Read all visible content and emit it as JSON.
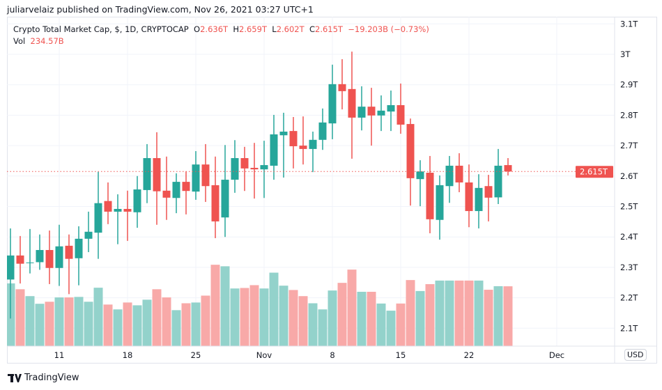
{
  "published": "juliarvelaiz published on TradingView.com, Nov 26, 2021 03:27 UTC+1",
  "legend": {
    "symbol": "Crypto Total Market Cap, $, 1D, CRYPTOCAP",
    "o_label": "O",
    "o": "2.636T",
    "h_label": "H",
    "h": "2.659T",
    "l_label": "L",
    "l": "2.602T",
    "c_label": "C",
    "c": "2.615T",
    "change": "−19.203B (−0.73%)",
    "vol_label": "Vol",
    "vol": "234.57B"
  },
  "currency": "USD",
  "footer": {
    "brand": "TradingView",
    "logo_text": "TV"
  },
  "colors": {
    "up": "#26a69a",
    "down": "#ef5350",
    "up_volume": "#93d2cb",
    "down_volume": "#f8a9a8",
    "grid": "#f0f3fa"
  },
  "chart_data": {
    "type": "candlestick",
    "start_date": "2021-10-06",
    "dates_note": "daily, Oct 6 to Nov 26, 2021",
    "price_unit": "T",
    "price_ticks": [
      "3.1T",
      "3T",
      "2.9T",
      "2.8T",
      "2.7T",
      "2.6T",
      "2.5T",
      "2.4T",
      "2.3T",
      "2.2T",
      "2.1T"
    ],
    "price_tick_values": [
      3.1,
      3.0,
      2.9,
      2.8,
      2.7,
      2.6,
      2.5,
      2.4,
      2.3,
      2.2,
      2.1
    ],
    "last_price_label": "2.615T",
    "last_price": 2.615,
    "time_ticks": [
      {
        "label": "11",
        "date": "2021-10-11"
      },
      {
        "label": "18",
        "date": "2021-10-18"
      },
      {
        "label": "25",
        "date": "2021-10-25"
      },
      {
        "label": "Nov",
        "date": "2021-11-01"
      },
      {
        "label": "8",
        "date": "2021-11-08"
      },
      {
        "label": "15",
        "date": "2021-11-15"
      },
      {
        "label": "22",
        "date": "2021-11-22"
      },
      {
        "label": "Dec",
        "date": "2021-12-01"
      }
    ],
    "ohlc": [
      [
        2.26,
        2.428,
        2.132,
        2.339
      ],
      [
        2.339,
        2.403,
        2.247,
        2.312
      ],
      [
        2.315,
        2.426,
        2.28,
        2.316
      ],
      [
        2.317,
        2.408,
        2.292,
        2.357
      ],
      [
        2.357,
        2.421,
        2.245,
        2.298
      ],
      [
        2.298,
        2.44,
        2.239,
        2.369
      ],
      [
        2.371,
        2.408,
        2.212,
        2.328
      ],
      [
        2.33,
        2.435,
        2.241,
        2.394
      ],
      [
        2.394,
        2.483,
        2.35,
        2.417
      ],
      [
        2.414,
        2.614,
        2.328,
        2.511
      ],
      [
        2.518,
        2.579,
        2.442,
        2.483
      ],
      [
        2.483,
        2.54,
        2.376,
        2.492
      ],
      [
        2.492,
        2.552,
        2.387,
        2.483
      ],
      [
        2.481,
        2.6,
        2.43,
        2.556
      ],
      [
        2.554,
        2.705,
        2.511,
        2.659
      ],
      [
        2.659,
        2.744,
        2.44,
        2.55
      ],
      [
        2.552,
        2.664,
        2.456,
        2.529
      ],
      [
        2.528,
        2.609,
        2.478,
        2.581
      ],
      [
        2.581,
        2.615,
        2.474,
        2.551
      ],
      [
        2.549,
        2.682,
        2.522,
        2.638
      ],
      [
        2.638,
        2.705,
        2.515,
        2.567
      ],
      [
        2.57,
        2.664,
        2.396,
        2.451
      ],
      [
        2.464,
        2.702,
        2.4,
        2.588
      ],
      [
        2.588,
        2.718,
        2.545,
        2.659
      ],
      [
        2.659,
        2.696,
        2.551,
        2.625
      ],
      [
        2.627,
        2.709,
        2.526,
        2.622
      ],
      [
        2.622,
        2.716,
        2.528,
        2.636
      ],
      [
        2.634,
        2.801,
        2.588,
        2.737
      ],
      [
        2.734,
        2.808,
        2.595,
        2.746
      ],
      [
        2.748,
        2.794,
        2.625,
        2.698
      ],
      [
        2.7,
        2.796,
        2.638,
        2.689
      ],
      [
        2.689,
        2.746,
        2.613,
        2.719
      ],
      [
        2.719,
        2.822,
        2.686,
        2.776
      ],
      [
        2.773,
        2.966,
        2.721,
        2.902
      ],
      [
        2.902,
        2.984,
        2.819,
        2.879
      ],
      [
        2.886,
        3.009,
        2.657,
        2.792
      ],
      [
        2.792,
        2.895,
        2.75,
        2.828
      ],
      [
        2.828,
        2.89,
        2.7,
        2.799
      ],
      [
        2.799,
        2.865,
        2.748,
        2.815
      ],
      [
        2.812,
        2.881,
        2.748,
        2.833
      ],
      [
        2.833,
        2.904,
        2.739,
        2.769
      ],
      [
        2.771,
        2.789,
        2.503,
        2.593
      ],
      [
        2.59,
        2.652,
        2.501,
        2.615
      ],
      [
        2.611,
        2.666,
        2.412,
        2.458
      ],
      [
        2.456,
        2.602,
        2.391,
        2.57
      ],
      [
        2.567,
        2.666,
        2.512,
        2.634
      ],
      [
        2.634,
        2.675,
        2.547,
        2.579
      ],
      [
        2.579,
        2.638,
        2.432,
        2.485
      ],
      [
        2.485,
        2.606,
        2.428,
        2.561
      ],
      [
        2.567,
        2.604,
        2.451,
        2.529
      ],
      [
        2.53,
        2.689,
        2.508,
        2.634
      ],
      [
        2.636,
        2.659,
        2.602,
        2.615
      ]
    ],
    "volume_unit": "B",
    "volume": [
      246,
      223,
      196,
      166,
      174,
      191,
      191,
      193,
      174,
      229,
      163,
      144,
      171,
      160,
      182,
      223,
      191,
      141,
      168,
      171,
      198,
      319,
      313,
      226,
      228,
      239,
      226,
      288,
      237,
      220,
      196,
      168,
      144,
      218,
      248,
      300,
      213,
      213,
      167,
      139,
      167,
      259,
      216,
      243,
      257,
      257,
      257,
      257,
      257,
      221,
      235,
      234.57
    ]
  }
}
